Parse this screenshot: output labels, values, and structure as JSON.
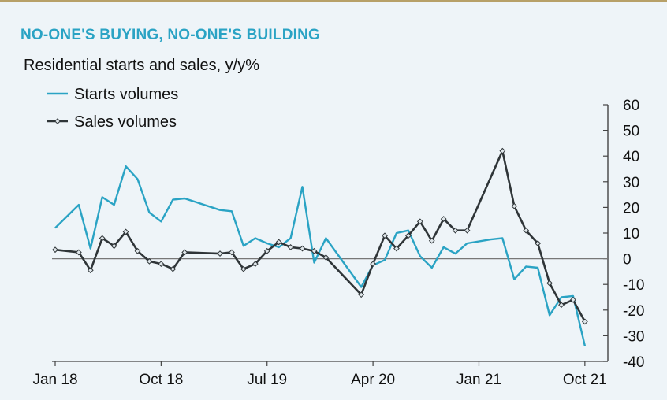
{
  "header": {
    "title": "NO-ONE'S BUYING, NO-ONE'S BUILDING",
    "subtitle": "Residential starts and sales, y/y%"
  },
  "colors": {
    "starts": "#2aa3c4",
    "sales": "#2f3538",
    "axis": "#444444",
    "title": "#2aa3c4"
  },
  "chart_data": {
    "type": "line",
    "title": "NO-ONE'S BUYING, NO-ONE'S BUILDING",
    "subtitle": "Residential starts and sales, y/y%",
    "xlabel": "",
    "ylabel": "",
    "ylim": [
      -40,
      60
    ],
    "y_ticks": [
      60,
      50,
      40,
      30,
      20,
      10,
      0,
      -10,
      -20,
      -30,
      -40
    ],
    "y_axis_side": "right",
    "x_tick_labels": [
      "Jan 18",
      "Oct 18",
      "Jul 19",
      "Apr 20",
      "Jan 21",
      "Oct 21"
    ],
    "x_tick_index": [
      0,
      9,
      18,
      27,
      36,
      45
    ],
    "legend_position": "top-left",
    "series": [
      {
        "name": "Starts volumes",
        "color": "#2aa3c4",
        "marker": "none",
        "points": [
          [
            0,
            12
          ],
          [
            2,
            21
          ],
          [
            3,
            4
          ],
          [
            4,
            24
          ],
          [
            5,
            21
          ],
          [
            6,
            36
          ],
          [
            7,
            31
          ],
          [
            8,
            18
          ],
          [
            9,
            14.5
          ],
          [
            10,
            23
          ],
          [
            11,
            23.5
          ],
          [
            12,
            22
          ],
          [
            14,
            19
          ],
          [
            15,
            18.5
          ],
          [
            16,
            5
          ],
          [
            17,
            8
          ],
          [
            18,
            6
          ],
          [
            19,
            4.5
          ],
          [
            20,
            8
          ],
          [
            21,
            28
          ],
          [
            22,
            -1.5
          ],
          [
            23,
            8
          ],
          [
            26,
            -11
          ],
          [
            27,
            -2.5
          ],
          [
            28,
            -0.5
          ],
          [
            29,
            10
          ],
          [
            30,
            11
          ],
          [
            31,
            1
          ],
          [
            32,
            -3.5
          ],
          [
            33,
            4.5
          ],
          [
            34,
            2
          ],
          [
            35,
            6
          ],
          [
            37,
            7.5
          ],
          [
            38,
            8
          ],
          [
            39,
            -8
          ],
          [
            40,
            -3
          ],
          [
            41,
            -3.5
          ],
          [
            42,
            -22
          ],
          [
            43,
            -15
          ],
          [
            44,
            -14.5
          ],
          [
            45,
            -34
          ]
        ]
      },
      {
        "name": "Sales volumes",
        "color": "#2f3538",
        "marker": "diamond",
        "points": [
          [
            0,
            3.5
          ],
          [
            2,
            2.5
          ],
          [
            3,
            -4.5
          ],
          [
            4,
            8
          ],
          [
            5,
            5
          ],
          [
            6,
            10.5
          ],
          [
            7,
            3
          ],
          [
            8,
            -1
          ],
          [
            9,
            -2
          ],
          [
            10,
            -4
          ],
          [
            11,
            2.5
          ],
          [
            14,
            2
          ],
          [
            15,
            2.5
          ],
          [
            16,
            -4
          ],
          [
            17,
            -2
          ],
          [
            18,
            3
          ],
          [
            19,
            6.5
          ],
          [
            20,
            4.5
          ],
          [
            21,
            4
          ],
          [
            22,
            3
          ],
          [
            23,
            0.5
          ],
          [
            26,
            -14
          ],
          [
            27,
            -2
          ],
          [
            28,
            9
          ],
          [
            29,
            4
          ],
          [
            30,
            9
          ],
          [
            31,
            14.5
          ],
          [
            32,
            7
          ],
          [
            33,
            15.5
          ],
          [
            34,
            11
          ],
          [
            35,
            11
          ],
          [
            38,
            42
          ],
          [
            39,
            20.5
          ],
          [
            40,
            11
          ],
          [
            41,
            6
          ],
          [
            42,
            -9.5
          ],
          [
            43,
            -18
          ],
          [
            44,
            -16
          ],
          [
            45,
            -24.5
          ]
        ]
      }
    ]
  }
}
